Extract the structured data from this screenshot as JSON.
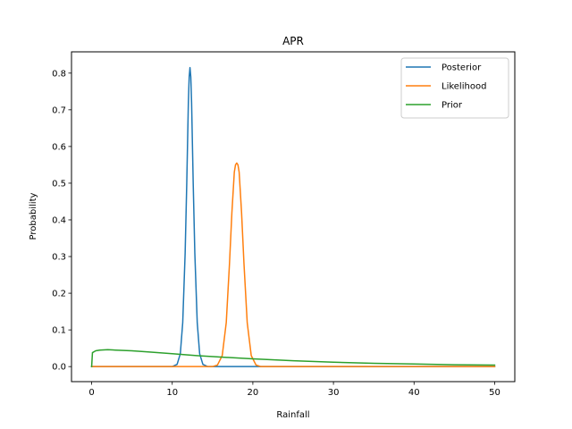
{
  "chart_data": {
    "type": "line",
    "title": "APR",
    "xlabel": "Rainfall",
    "ylabel": "Probability",
    "xlim": [
      -2.5,
      52.5
    ],
    "ylim": [
      -0.041,
      0.858
    ],
    "xticks": [
      0,
      10,
      20,
      30,
      40,
      50
    ],
    "yticks": [
      0.0,
      0.1,
      0.2,
      0.3,
      0.4,
      0.5,
      0.6,
      0.7,
      0.8
    ],
    "xtick_labels": [
      "0",
      "10",
      "20",
      "30",
      "40",
      "50"
    ],
    "ytick_labels": [
      "0.0",
      "0.1",
      "0.2",
      "0.3",
      "0.4",
      "0.5",
      "0.6",
      "0.7",
      "0.8"
    ],
    "grid": false,
    "legend_position": "top-right",
    "series": [
      {
        "name": "Posterior",
        "color": "#1f77b4",
        "x": [
          0,
          10.0,
          10.6,
          11.0,
          11.3,
          11.6,
          11.8,
          12.0,
          12.1,
          12.2,
          12.3,
          12.4,
          12.6,
          12.8,
          13.1,
          13.4,
          13.8,
          14.4,
          15.0,
          50
        ],
        "y": [
          0,
          0,
          0.006,
          0.035,
          0.12,
          0.31,
          0.5,
          0.72,
          0.79,
          0.815,
          0.79,
          0.72,
          0.5,
          0.31,
          0.12,
          0.035,
          0.006,
          0,
          0,
          0
        ]
      },
      {
        "name": "Likelihood",
        "color": "#ff7f0e",
        "x": [
          0,
          15.0,
          15.6,
          16.2,
          16.7,
          17.1,
          17.4,
          17.7,
          17.85,
          18.0,
          18.15,
          18.3,
          18.6,
          18.9,
          19.3,
          19.8,
          20.4,
          21.0,
          50
        ],
        "y": [
          0,
          0,
          0.004,
          0.03,
          0.12,
          0.28,
          0.42,
          0.53,
          0.55,
          0.555,
          0.55,
          0.53,
          0.42,
          0.28,
          0.12,
          0.03,
          0.004,
          0,
          0
        ]
      },
      {
        "name": "Prior",
        "color": "#2ca02c",
        "x": [
          0,
          0.1,
          0.5,
          1,
          2,
          3,
          5,
          7,
          10,
          13,
          16,
          20,
          25,
          30,
          35,
          40,
          45,
          50
        ],
        "y": [
          0,
          0.038,
          0.043,
          0.045,
          0.046,
          0.045,
          0.043,
          0.04,
          0.035,
          0.03,
          0.026,
          0.021,
          0.016,
          0.012,
          0.009,
          0.007,
          0.005,
          0.004
        ]
      }
    ]
  }
}
